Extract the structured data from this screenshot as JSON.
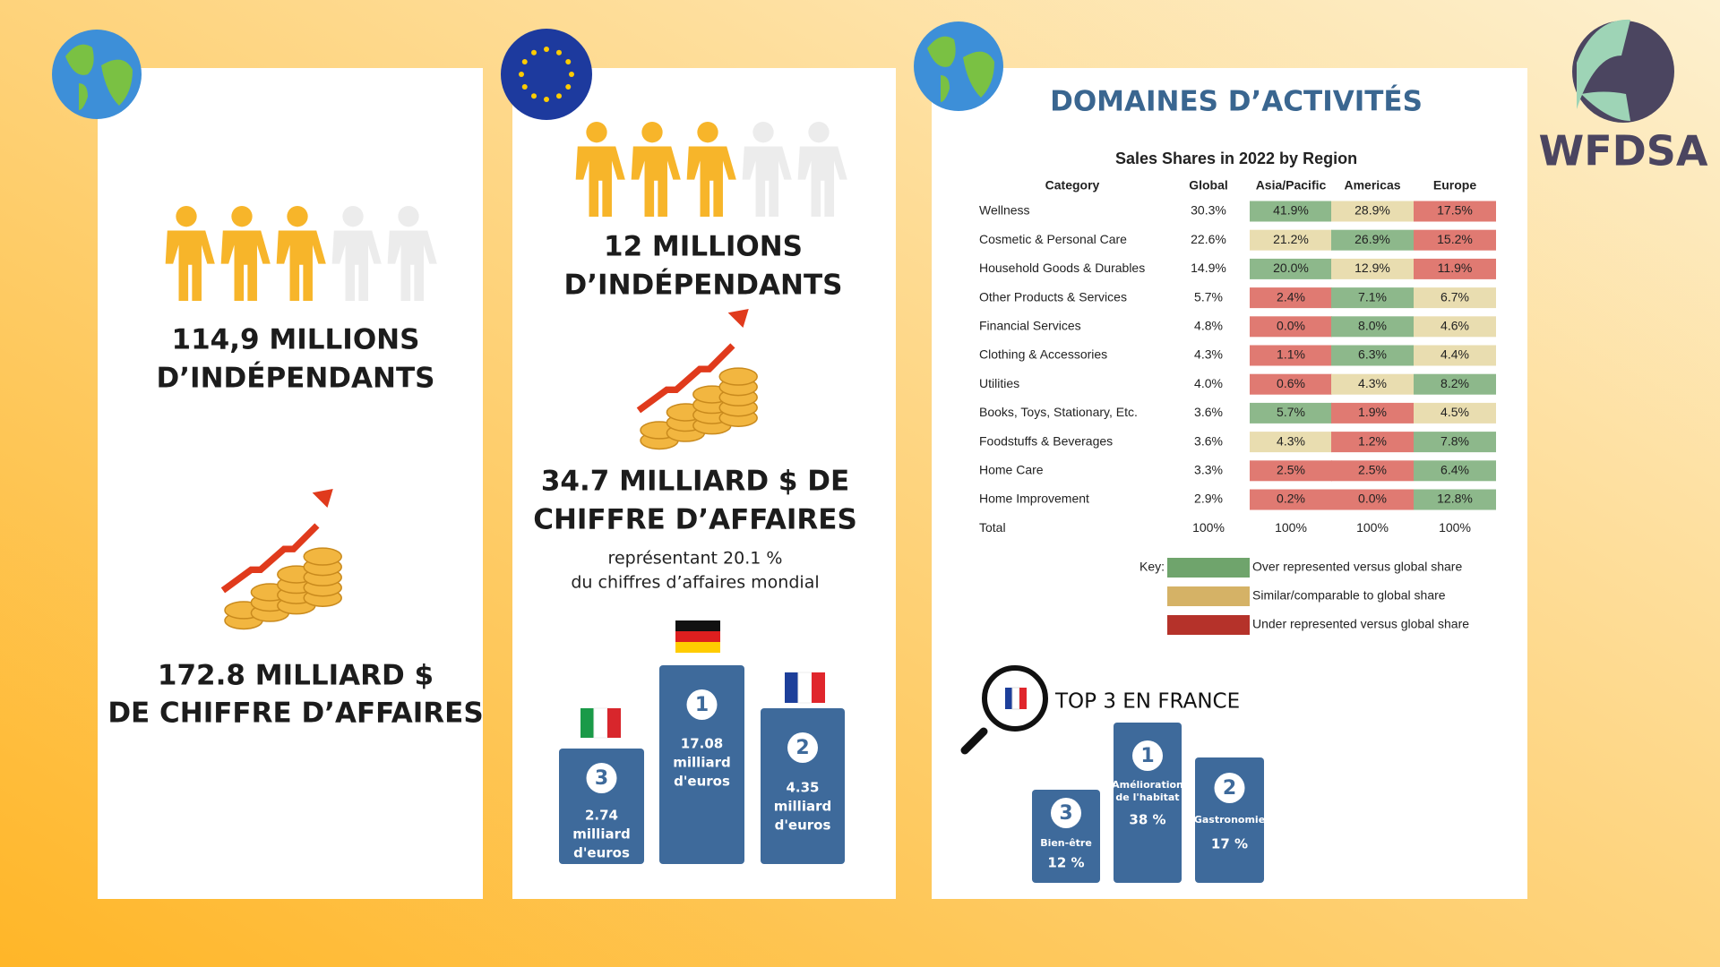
{
  "panel_world": {
    "headline": [
      "114,9 MILLIONS",
      "D’INDÉPENDANTS"
    ],
    "revenue": [
      "172.8 MILLIARD $",
      "DE CHIFFRE D’AFFAIRES"
    ]
  },
  "panel_europe": {
    "headline": [
      "12 MILLIONS",
      "D’INDÉPENDANTS"
    ],
    "revenue": [
      "34.7 MILLIARD $ DE",
      "CHIFFRE D’AFFAIRES"
    ],
    "note": [
      "représentant 20.1 %",
      "du chiffres d’affaires mondial"
    ],
    "podium": [
      {
        "rank": "1",
        "lines": [
          "17.08",
          "milliard",
          "d'euros"
        ]
      },
      {
        "rank": "2",
        "lines": [
          "4.35",
          "milliard",
          "d'euros"
        ]
      },
      {
        "rank": "3",
        "lines": [
          "2.74",
          "milliard",
          "d'euros"
        ]
      }
    ]
  },
  "panel_activities": {
    "title": "DOMAINES D’ACTIVITÉS",
    "table": {
      "title": "Sales Shares in 2022 by Region",
      "header": [
        "Category",
        "Global",
        "Asia/Pacific",
        "Americas",
        "Europe"
      ],
      "rows": [
        {
          "cells": [
            "Wellness",
            "30.3%",
            "41.9%",
            "28.9%",
            "17.5%"
          ],
          "colors": [
            "#8db88b",
            "#e9ddb0",
            "#e07a72"
          ]
        },
        {
          "cells": [
            "Cosmetic & Personal Care",
            "22.6%",
            "21.2%",
            "26.9%",
            "15.2%"
          ],
          "colors": [
            "#e9ddb0",
            "#8db88b",
            "#e07a72"
          ]
        },
        {
          "cells": [
            "Household Goods & Durables",
            "14.9%",
            "20.0%",
            "12.9%",
            "11.9%"
          ],
          "colors": [
            "#8db88b",
            "#e9ddb0",
            "#e07a72"
          ]
        },
        {
          "cells": [
            "Other Products & Services",
            "5.7%",
            "2.4%",
            "7.1%",
            "6.7%"
          ],
          "colors": [
            "#e07a72",
            "#8db88b",
            "#e9ddb0"
          ]
        },
        {
          "cells": [
            "Financial Services",
            "4.8%",
            "0.0%",
            "8.0%",
            "4.6%"
          ],
          "colors": [
            "#e07a72",
            "#8db88b",
            "#e9ddb0"
          ]
        },
        {
          "cells": [
            "Clothing & Accessories",
            "4.3%",
            "1.1%",
            "6.3%",
            "4.4%"
          ],
          "colors": [
            "#e07a72",
            "#8db88b",
            "#e9ddb0"
          ]
        },
        {
          "cells": [
            "Utilities",
            "4.0%",
            "0.6%",
            "4.3%",
            "8.2%"
          ],
          "colors": [
            "#e07a72",
            "#e9ddb0",
            "#8db88b"
          ]
        },
        {
          "cells": [
            "Books, Toys, Stationary, Etc.",
            "3.6%",
            "5.7%",
            "1.9%",
            "4.5%"
          ],
          "colors": [
            "#8db88b",
            "#e07a72",
            "#e9ddb0"
          ]
        },
        {
          "cells": [
            "Foodstuffs & Beverages",
            "3.6%",
            "4.3%",
            "1.2%",
            "7.8%"
          ],
          "colors": [
            "#e9ddb0",
            "#e07a72",
            "#8db88b"
          ]
        },
        {
          "cells": [
            "Home Care",
            "3.3%",
            "2.5%",
            "2.5%",
            "6.4%"
          ],
          "colors": [
            "#e07a72",
            "#e07a72",
            "#8db88b"
          ]
        },
        {
          "cells": [
            "Home Improvement",
            "2.9%",
            "0.2%",
            "0.0%",
            "12.8%"
          ],
          "colors": [
            "#e07a72",
            "#e07a72",
            "#8db88b"
          ]
        },
        {
          "cells": [
            "Total",
            "100%",
            "100%",
            "100%",
            "100%"
          ]
        }
      ]
    },
    "key": {
      "label": "Key:",
      "items": [
        {
          "color": "#6fa46c",
          "text": "Over represented versus global share"
        },
        {
          "color": "#d5b266",
          "text": "Similar/comparable to global share"
        },
        {
          "color": "#b5322a",
          "text": "Under represented versus global share"
        }
      ]
    },
    "france": {
      "title": "TOP 3 EN FRANCE",
      "podium": [
        {
          "rank": "1",
          "lines": [
            "Amélioration",
            "de l'habitat"
          ],
          "value": "38 %"
        },
        {
          "rank": "2",
          "lines": [
            "Gastronomie"
          ],
          "value": "17 %"
        },
        {
          "rank": "3",
          "lines": [
            "Bien-être"
          ],
          "value": "12 %"
        }
      ]
    }
  },
  "logo": {
    "text": "WFDSA"
  }
}
